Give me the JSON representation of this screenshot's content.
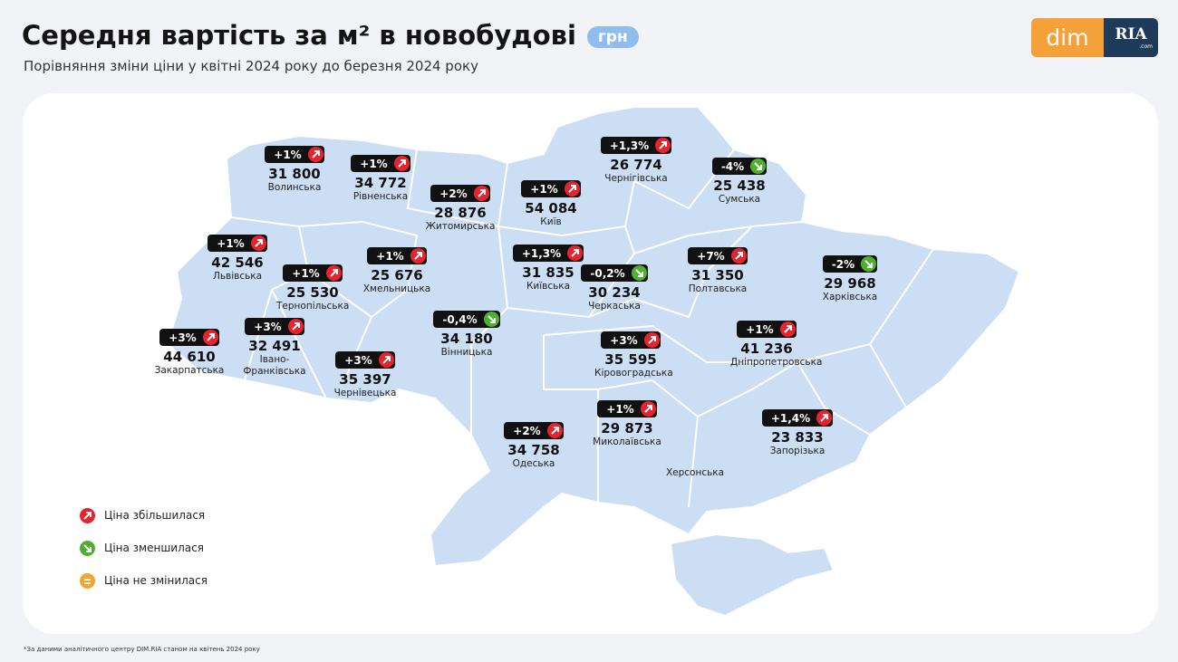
{
  "header": {
    "title": "Середня вартість за м² в новобудові",
    "unit": "грн",
    "subtitle": "Порівняння зміни ціни у квітні 2024 року до березня 2024 року"
  },
  "logo": {
    "left": "dim",
    "right": "RIA",
    "small": ".com"
  },
  "regions": [
    {
      "change": "+1%",
      "direction": "up",
      "price": "31 800",
      "name": "Волинська"
    },
    {
      "change": "+1%",
      "direction": "up",
      "price": "34 772",
      "name": "Рівненська"
    },
    {
      "change": "+2%",
      "direction": "up",
      "price": "28 876",
      "name": "Житомирська"
    },
    {
      "change": "+1%",
      "direction": "up",
      "price": "54 084",
      "name": "Київ"
    },
    {
      "change": "+1,3%",
      "direction": "up",
      "price": "26 774",
      "name": "Чернігівська"
    },
    {
      "change": "-4%",
      "direction": "down",
      "price": "25 438",
      "name": "Сумська"
    },
    {
      "change": "+1%",
      "direction": "up",
      "price": "42 546",
      "name": "Львівська"
    },
    {
      "change": "+1%",
      "direction": "up",
      "price": "25 676",
      "name": "Хмельницька"
    },
    {
      "change": "+1%",
      "direction": "up",
      "price": "25 530",
      "name": "Тернопільська"
    },
    {
      "change": "+1,3%",
      "direction": "up",
      "price": "31 835",
      "name": "Київська"
    },
    {
      "change": "-0,2%",
      "direction": "down",
      "price": "30 234",
      "name": "Черкаська"
    },
    {
      "change": "+7%",
      "direction": "up",
      "price": "31 350",
      "name": "Полтавська"
    },
    {
      "change": "-2%",
      "direction": "down",
      "price": "29 968",
      "name": "Харківська"
    },
    {
      "change": "-0,4%",
      "direction": "down",
      "price": "34 180",
      "name": "Вінницька"
    },
    {
      "change": "+3%",
      "direction": "up",
      "price": "44 610",
      "name": "Закарпатська"
    },
    {
      "change": "+3%",
      "direction": "up",
      "price": "32 491",
      "name": "Івано-Франківська"
    },
    {
      "change": "+3%",
      "direction": "up",
      "price": "35 397",
      "name": "Чернівецька"
    },
    {
      "change": "+3%",
      "direction": "up",
      "price": "35 595",
      "name": "Кіровоградська"
    },
    {
      "change": "+1%",
      "direction": "up",
      "price": "41 236",
      "name": "Дніпропетровська"
    },
    {
      "change": "+1%",
      "direction": "up",
      "price": "29 873",
      "name": "Миколаївська"
    },
    {
      "change": "+2%",
      "direction": "up",
      "price": "34 758",
      "name": "Одеська"
    },
    {
      "change": "+1,4%",
      "direction": "up",
      "price": "23 833",
      "name": "Запорізька"
    }
  ],
  "unlabeled_regions": [
    {
      "name": "Херсонська"
    }
  ],
  "legend": [
    {
      "label": "Ціна збільшилася",
      "status": "up"
    },
    {
      "label": "Ціна зменшилася",
      "status": "down"
    },
    {
      "label": "Ціна не змінилася",
      "status": "same"
    }
  ],
  "footnote": "*За даними аналітичного центру DIM.RIA станом на квітень 2024 року"
}
